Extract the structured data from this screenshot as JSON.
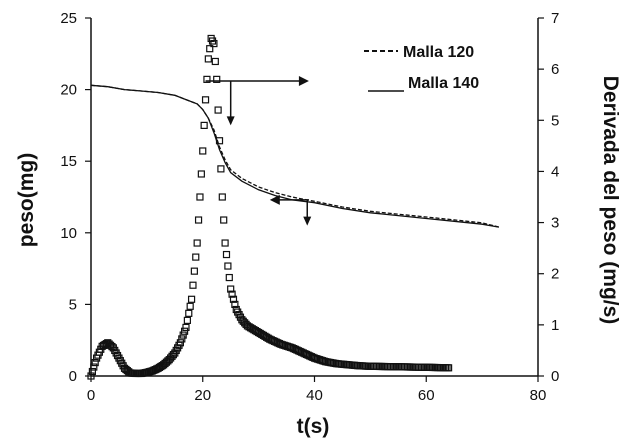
{
  "chart_data": {
    "type": "line",
    "xlabel": "t(s)",
    "ylabel_left": "peso(mg)",
    "ylabel_right": "Derivada del peso (mg/s)",
    "xlim": [
      0,
      80
    ],
    "ylim_left": [
      0,
      25
    ],
    "ylim_right": [
      0,
      7
    ],
    "x_ticks": [
      "0",
      "20",
      "40",
      "60",
      "80"
    ],
    "y_left_ticks": [
      "0",
      "5",
      "10",
      "15",
      "20",
      "25"
    ],
    "y_right_ticks": [
      "0",
      "1",
      "2",
      "3",
      "4",
      "5",
      "6",
      "7"
    ],
    "grid": false,
    "legend_position": "top-right",
    "series": [
      {
        "name": "Malla 120",
        "axis": "left",
        "style": "dashed",
        "x": [
          0,
          3,
          6,
          9,
          12,
          15,
          17,
          19,
          20,
          21,
          22,
          23,
          24,
          25,
          27,
          30,
          33,
          36,
          40,
          45,
          50,
          55,
          60,
          65,
          70,
          73
        ],
        "y": [
          20.3,
          20.2,
          20.0,
          19.9,
          19.8,
          19.6,
          19.3,
          19.0,
          18.6,
          18.0,
          17.2,
          16.0,
          15.1,
          14.4,
          13.8,
          13.2,
          12.8,
          12.5,
          12.2,
          11.8,
          11.5,
          11.3,
          11.1,
          10.9,
          10.7,
          10.4
        ]
      },
      {
        "name": "Malla 140",
        "axis": "left",
        "style": "solid",
        "x": [
          0,
          3,
          6,
          9,
          12,
          15,
          17,
          19,
          20,
          21,
          22,
          23,
          24,
          25,
          27,
          30,
          33,
          36,
          40,
          45,
          50,
          55,
          60,
          65,
          70,
          73
        ],
        "y": [
          20.3,
          20.2,
          20.0,
          19.9,
          19.8,
          19.6,
          19.3,
          19.0,
          18.6,
          18.0,
          17.0,
          15.8,
          14.9,
          14.2,
          13.6,
          13.0,
          12.6,
          12.3,
          12.1,
          11.7,
          11.4,
          11.2,
          11.0,
          10.8,
          10.6,
          10.4
        ]
      },
      {
        "name": "",
        "axis": "right",
        "style": "markers",
        "x": [
          0,
          1,
          2,
          3,
          4,
          5,
          6,
          7,
          8,
          9,
          10,
          11,
          12,
          13,
          14,
          15,
          16,
          17,
          18,
          19,
          20,
          20.5,
          21,
          21.5,
          22,
          22.5,
          23,
          23.5,
          24,
          25,
          26,
          27,
          28,
          30,
          32,
          34,
          36,
          38,
          40,
          42,
          44,
          46,
          48,
          50,
          55,
          60,
          64
        ],
        "y": [
          0,
          0.35,
          0.58,
          0.65,
          0.55,
          0.35,
          0.15,
          0.06,
          0.05,
          0.05,
          0.07,
          0.1,
          0.15,
          0.22,
          0.32,
          0.45,
          0.65,
          0.95,
          1.5,
          2.6,
          4.4,
          5.4,
          6.2,
          6.6,
          6.5,
          5.8,
          4.6,
          3.5,
          2.6,
          1.7,
          1.3,
          1.1,
          0.98,
          0.85,
          0.72,
          0.62,
          0.55,
          0.45,
          0.35,
          0.28,
          0.24,
          0.22,
          0.2,
          0.19,
          0.18,
          0.17,
          0.16
        ]
      }
    ],
    "annotations": [
      "arrow-right",
      "arrow-left"
    ]
  }
}
